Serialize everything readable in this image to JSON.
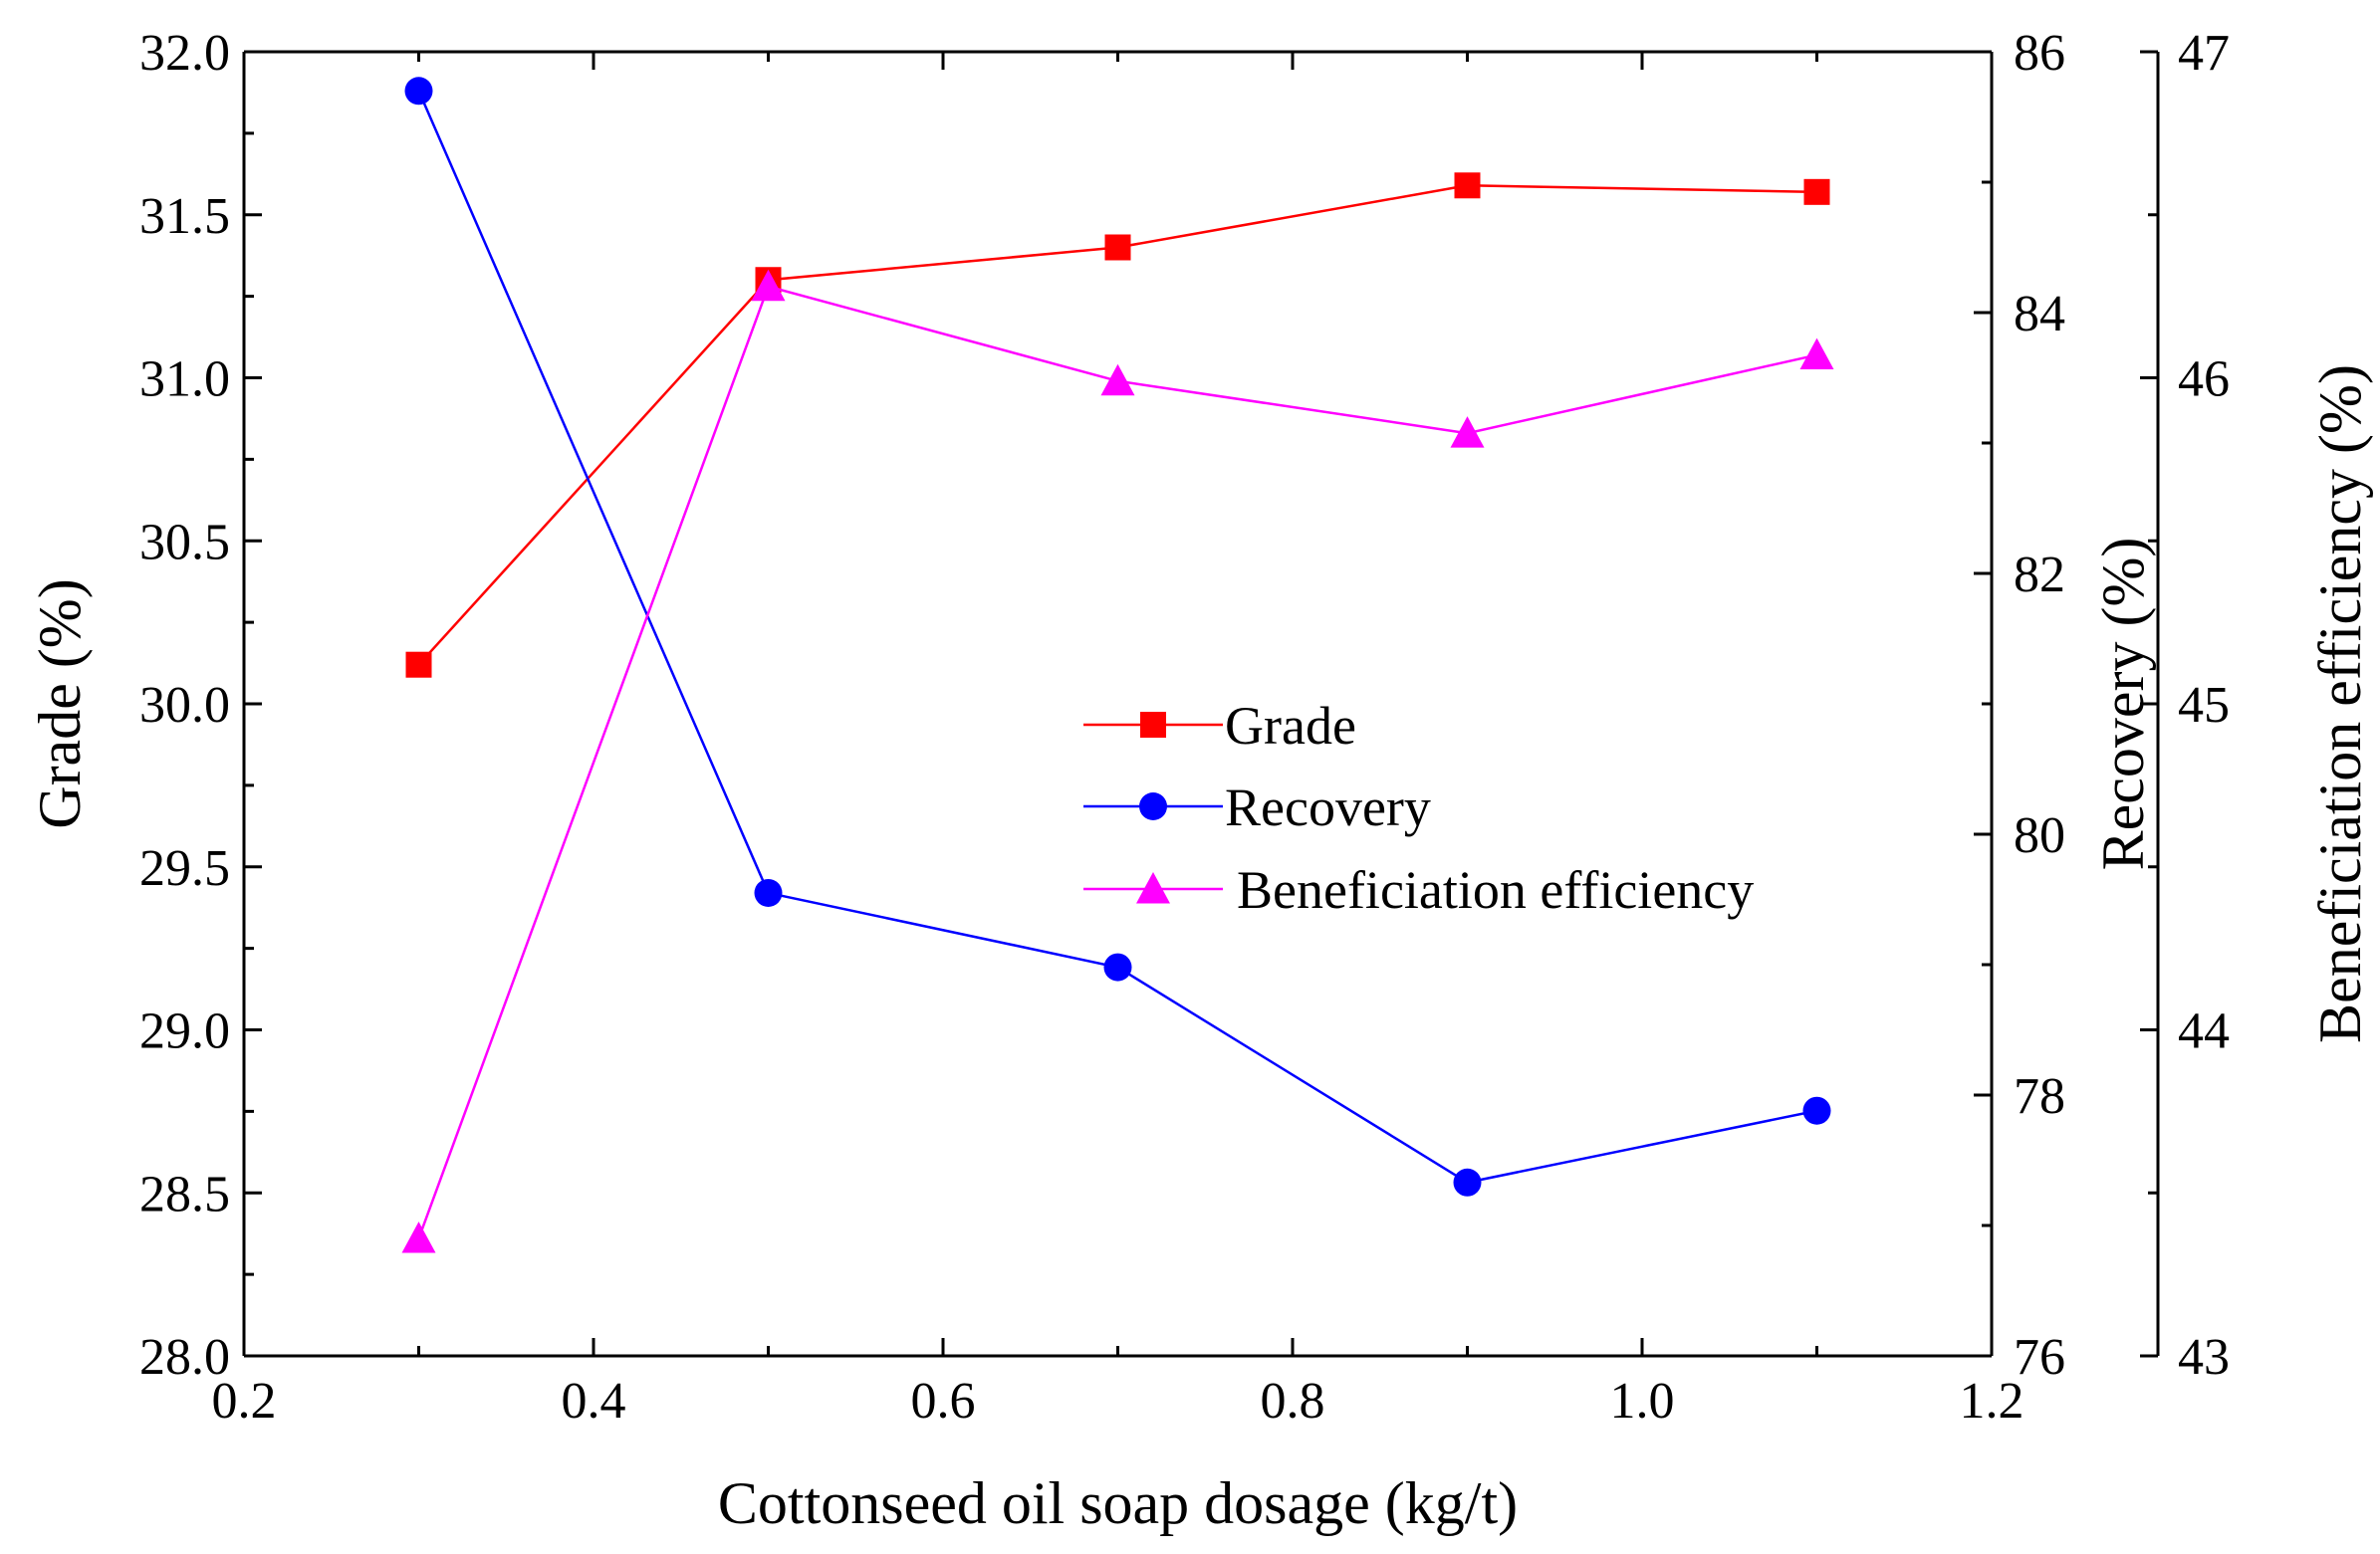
{
  "chart_data": {
    "type": "line",
    "title": "",
    "xlabel": "Cottonseed oil soap dosage (kg/t)",
    "xlim": [
      0.2,
      1.2
    ],
    "xticks": [
      0.2,
      0.4,
      0.6,
      0.8,
      1.0,
      1.2
    ],
    "xtick_labels": [
      "0.2",
      "0.4",
      "0.6",
      "0.8",
      "1.0",
      "1.2"
    ],
    "x": [
      0.3,
      0.5,
      0.7,
      0.9,
      1.1
    ],
    "axes": [
      {
        "id": "grade",
        "label": "Grade (%)",
        "side": "left",
        "ylim": [
          28.0,
          32.0
        ],
        "ticks": [
          28.0,
          28.5,
          29.0,
          29.5,
          30.0,
          30.5,
          31.0,
          31.5,
          32.0
        ],
        "tick_labels": [
          "28.0",
          "28.5",
          "29.0",
          "29.5",
          "30.0",
          "30.5",
          "31.0",
          "31.5",
          "32.0"
        ]
      },
      {
        "id": "recovery",
        "label": "Recovery (%)",
        "side": "right",
        "ylim": [
          76,
          86
        ],
        "ticks": [
          76,
          78,
          80,
          82,
          84,
          86
        ],
        "tick_labels": [
          "76",
          "78",
          "80",
          "82",
          "84",
          "86"
        ]
      },
      {
        "id": "efficiency",
        "label": "Beneficiation efficiency (%)",
        "side": "right-offset",
        "ylim": [
          43,
          47
        ],
        "ticks": [
          43,
          44,
          45,
          46,
          47
        ],
        "tick_labels": [
          "43",
          "44",
          "45",
          "46",
          "47"
        ]
      }
    ],
    "series": [
      {
        "name": "Grade",
        "axis": "grade",
        "marker": "square",
        "color": "#ff0000",
        "values": [
          30.12,
          31.3,
          31.4,
          31.59,
          31.57
        ]
      },
      {
        "name": "Recovery",
        "axis": "recovery",
        "marker": "circle",
        "color": "#0000ff",
        "values": [
          85.7,
          79.55,
          78.98,
          77.33,
          77.88
        ]
      },
      {
        "name": "Beneficiation efficiency",
        "axis": "efficiency",
        "marker": "triangle",
        "color": "#ff00ff",
        "values": [
          43.36,
          46.28,
          45.99,
          45.83,
          46.07
        ]
      }
    ],
    "legend": {
      "position": "center-right",
      "entries": [
        "Grade",
        "Recovery",
        "Beneficiation efficiency"
      ]
    }
  }
}
